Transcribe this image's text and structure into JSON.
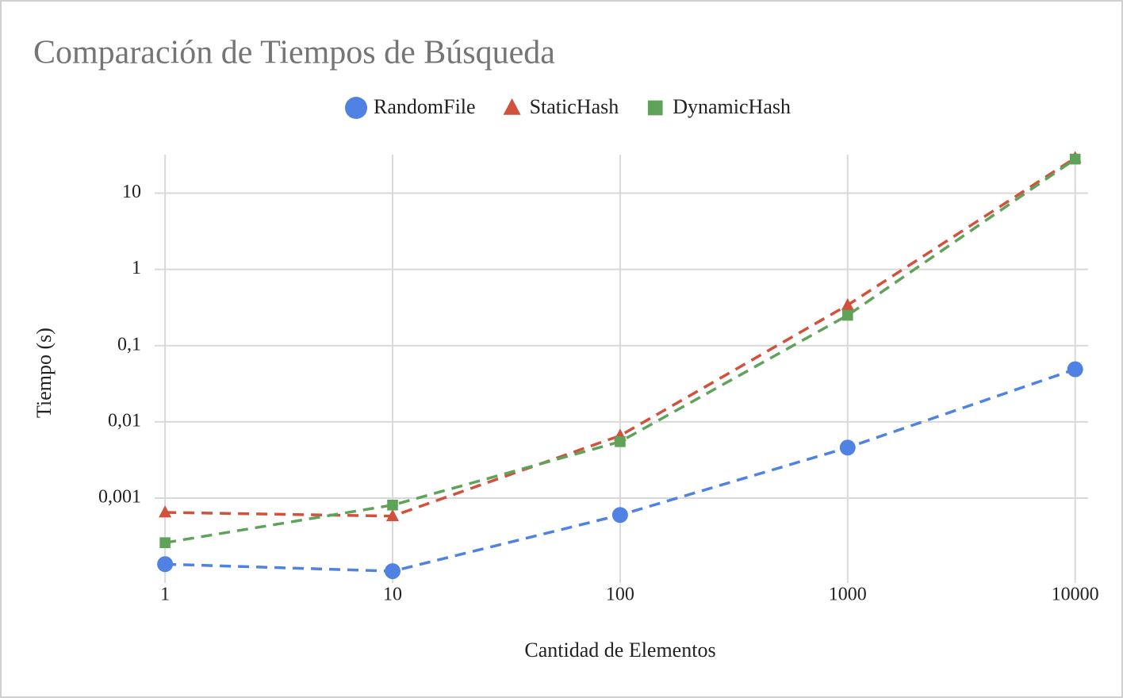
{
  "chart_data": {
    "type": "line",
    "title": "Comparación de Tiempos de Búsqueda",
    "x_label": "Cantidad de Elementos",
    "y_label": "Tiempo (s)",
    "x": [
      1,
      10,
      100,
      1000,
      10000
    ],
    "series": [
      {
        "name": "RandomFile",
        "color": "#4f82e3",
        "marker": "circle",
        "values": [
          0.000136,
          0.00011,
          0.0006,
          0.0046,
          0.049
        ]
      },
      {
        "name": "StaticHash",
        "color": "#d1513d",
        "marker": "triangle",
        "values": [
          0.00065,
          0.00058,
          0.0066,
          0.34,
          29
        ]
      },
      {
        "name": "DynamicHash",
        "color": "#5fa35a",
        "marker": "square",
        "values": [
          0.00026,
          0.00081,
          0.0055,
          0.25,
          28
        ]
      }
    ],
    "log_x": true,
    "log_y": true,
    "xlim": [
      0.9,
      11400
    ],
    "ylim": [
      7.7e-05,
      32
    ],
    "xticks": [
      1,
      10,
      100,
      1000,
      10000
    ],
    "yticks": [
      {
        "value": 0.001,
        "label": "0,001"
      },
      {
        "value": 0.01,
        "label": "0,01"
      },
      {
        "value": 0.1,
        "label": "0,1"
      },
      1,
      10
    ],
    "grid": true,
    "legend": "top"
  }
}
